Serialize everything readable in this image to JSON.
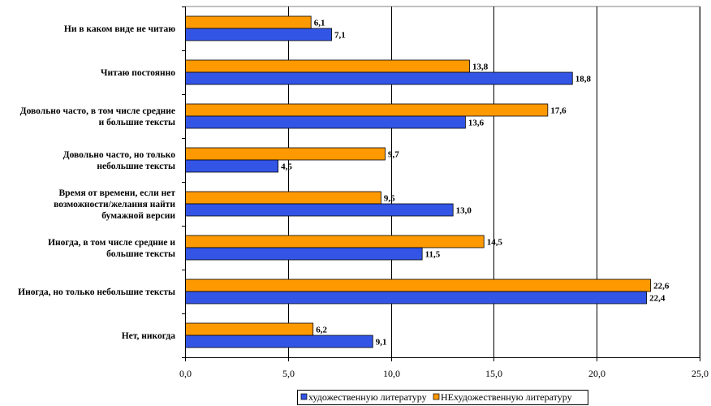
{
  "chart_data": {
    "type": "bar",
    "orientation": "horizontal",
    "categories": [
      [
        "Ни в каком виде не читаю"
      ],
      [
        "Читаю постоянно"
      ],
      [
        "Довольно часто, в том числе средние",
        "и большие тексты"
      ],
      [
        "Довольно часто, но только",
        "небольшие тексты"
      ],
      [
        "Время от времени, если нет",
        "возможности/желания найти",
        "бумажной версии"
      ],
      [
        "Иногда, в том числе средние и",
        "большие тексты"
      ],
      [
        "Иногда, но только небольшие тексты"
      ],
      [
        "Нет, никогда"
      ]
    ],
    "series": [
      {
        "name": "художественную литературу",
        "color": "#3355e6",
        "values": [
          7.1,
          18.8,
          13.6,
          4.5,
          13.0,
          11.5,
          22.4,
          9.1
        ],
        "labels": [
          "7,1",
          "18,8",
          "13,6",
          "4,5",
          "13,0",
          "11,5",
          "22,4",
          "9,1"
        ]
      },
      {
        "name": "НЕхудожественную литературу",
        "color": "#ff9900",
        "values": [
          6.1,
          13.8,
          17.6,
          9.7,
          9.5,
          14.5,
          22.6,
          6.2
        ],
        "labels": [
          "6,1",
          "13,8",
          "17,6",
          "9,7",
          "9,5",
          "14,5",
          "22,6",
          "6,2"
        ]
      }
    ],
    "xlim": [
      0,
      25
    ],
    "xticks": [
      0,
      5,
      10,
      15,
      20,
      25
    ],
    "xtick_labels": [
      "0,0",
      "5,0",
      "10,0",
      "15,0",
      "20,0",
      "25,0"
    ],
    "grid": "vertical",
    "legend_position": "bottom"
  }
}
